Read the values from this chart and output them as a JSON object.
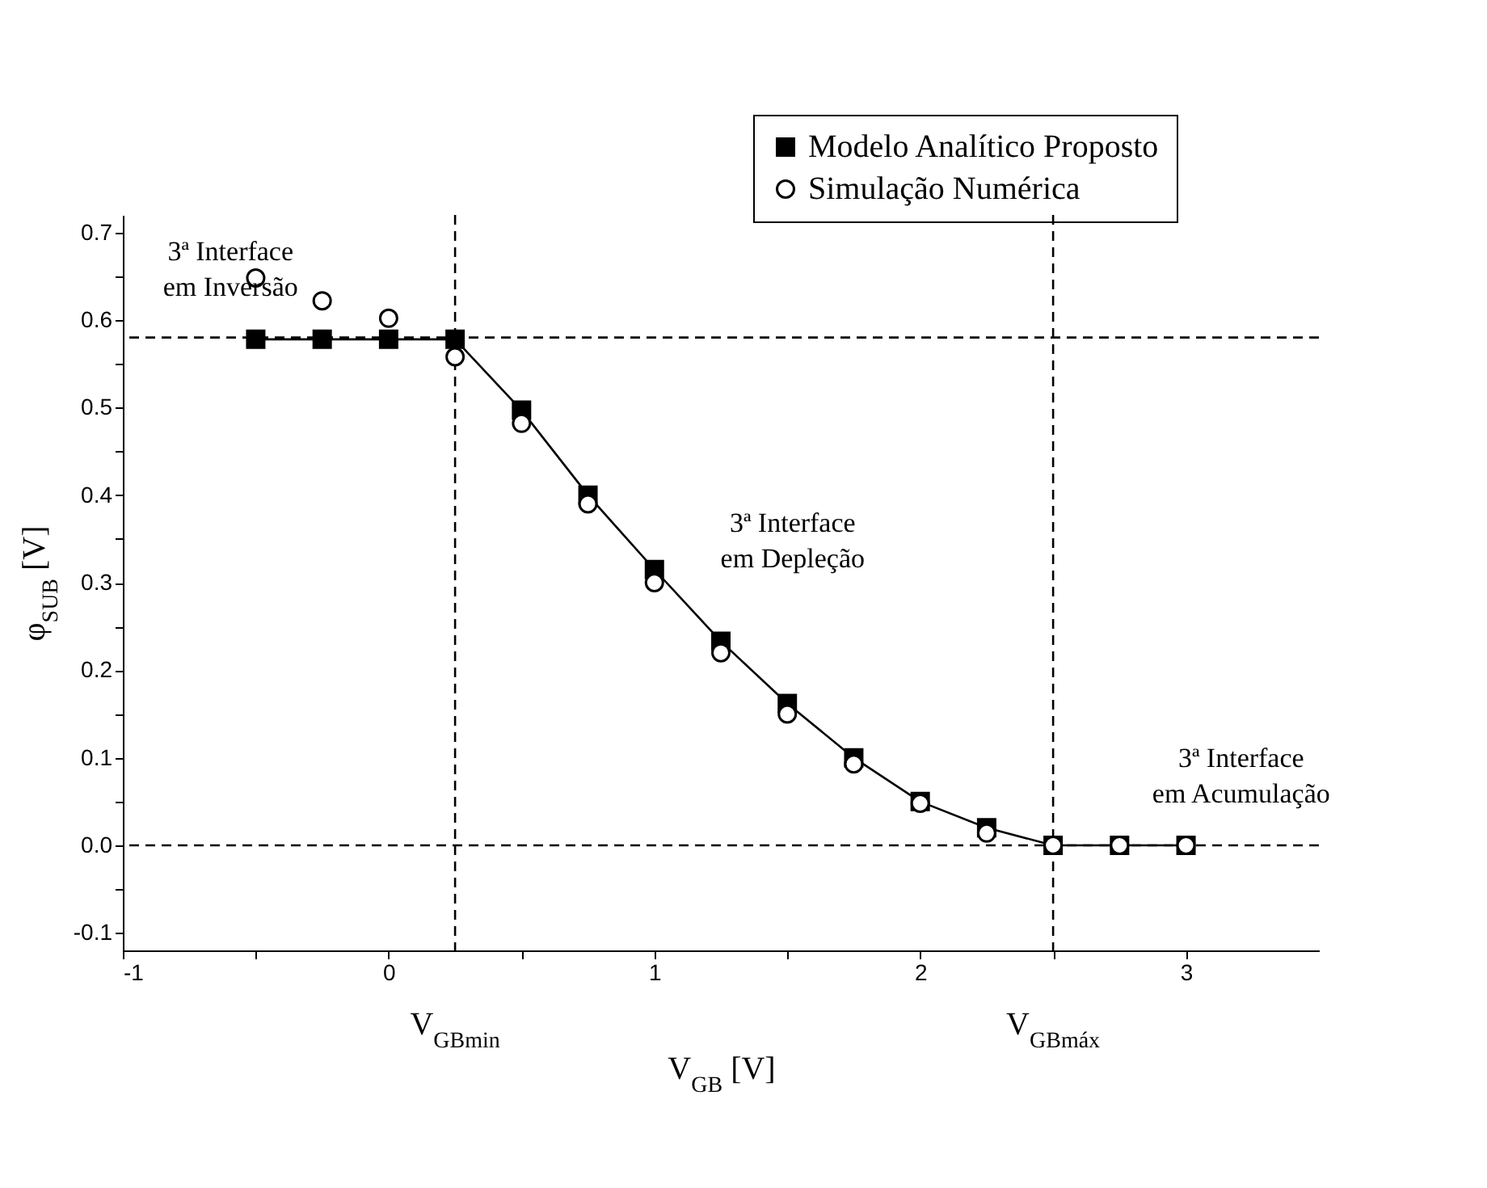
{
  "chart_data": {
    "type": "line",
    "xlabel": "V$_{GB}$ [V]",
    "ylabel": "φ$_{SUB}$ [V]",
    "xlim": [
      -1,
      3.5
    ],
    "ylim": [
      -0.12,
      0.72
    ],
    "xticks": [
      -1,
      {
        "value": -0.5,
        "label": null
      },
      0,
      {
        "value": 0.5,
        "label": null
      },
      1,
      {
        "value": 1.5,
        "label": null
      },
      2,
      {
        "value": 2.5,
        "label": null
      },
      3
    ],
    "yticks": [
      {
        "value": -0.1,
        "label": "-0.1"
      },
      {
        "value": -0.05,
        "label": null
      },
      {
        "value": 0,
        "label": "0.0"
      },
      {
        "value": 0.05,
        "label": null
      },
      0.1,
      {
        "value": 0.15,
        "label": null
      },
      0.2,
      {
        "value": 0.25,
        "label": null
      },
      0.3,
      {
        "value": 0.35,
        "label": null
      },
      0.4,
      {
        "value": 0.45,
        "label": null
      },
      0.5,
      {
        "value": 0.55,
        "label": null
      },
      0.6,
      {
        "value": 0.65,
        "label": null
      },
      0.7
    ],
    "x": [
      -0.5,
      -0.25,
      0,
      0.25,
      0.5,
      0.75,
      1,
      1.25,
      1.5,
      1.75,
      2,
      2.25,
      2.5,
      2.75,
      3
    ],
    "series": [
      {
        "name": "Modelo Analítico Proposto",
        "type": "line",
        "marker": "square",
        "color": "#000000",
        "values": [
          0.578,
          0.578,
          0.578,
          0.578,
          0.497,
          0.4,
          0.315,
          0.233,
          0.162,
          0.1,
          0.05,
          0.02,
          0,
          0,
          0
        ]
      },
      {
        "name": "Simulação Numérica",
        "type": "scatter",
        "marker": "circle",
        "color": "#000000",
        "values": [
          0.648,
          0.622,
          0.602,
          0.558,
          0.482,
          0.39,
          0.3,
          0.22,
          0.15,
          0.093,
          0.048,
          0.014,
          0,
          0,
          0
        ]
      }
    ],
    "ref_lines": [
      {
        "axis": "x",
        "value": 0.25,
        "label": "V$_{GBmin}$",
        "line_style": "dashed"
      },
      {
        "axis": "x",
        "value": 2.5,
        "label": "V$_{GBmáx}$",
        "line_style": "dashed"
      },
      {
        "axis": "y",
        "value": 0.58,
        "line_style": "dashed"
      },
      {
        "axis": "y",
        "value": 0,
        "line_style": "dashed"
      }
    ],
    "annotations": [
      "3ª Interface\nem Inversão",
      "3ª Interface\nem Depleção",
      "3ª Interface\nem Acumulação"
    ],
    "grid": false,
    "legend": "top right"
  }
}
